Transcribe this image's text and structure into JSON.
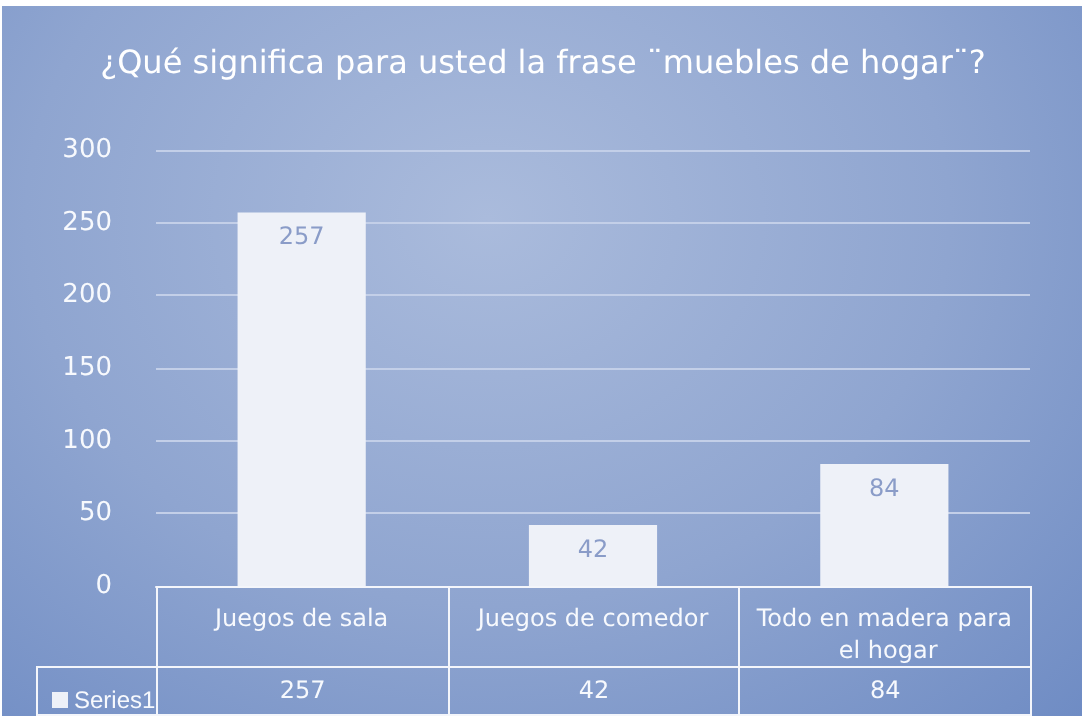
{
  "chart_data": {
    "type": "bar",
    "title": "¿Qué significa para usted la frase ¨muebles de hogar¨?",
    "categories": [
      "Juegos de sala",
      "Juegos de comedor",
      "Todo en madera para el hogar"
    ],
    "series": [
      {
        "name": "Series1",
        "color": "#eef1f8",
        "values": [
          257,
          42,
          84
        ]
      }
    ],
    "annotations": [
      {
        "text": "257",
        "x": "Juegos de sala",
        "y": 257
      },
      {
        "text": "42",
        "x": "Juegos de comedor",
        "y": 42
      },
      {
        "text": "84",
        "x": "Todo en madera para el hogar",
        "y": 84
      }
    ],
    "ylim": [
      0,
      300
    ],
    "yticks": [
      0,
      50,
      100,
      150,
      200,
      250,
      300
    ],
    "grid": "y",
    "data_labels": true,
    "legend": "bottom left"
  }
}
